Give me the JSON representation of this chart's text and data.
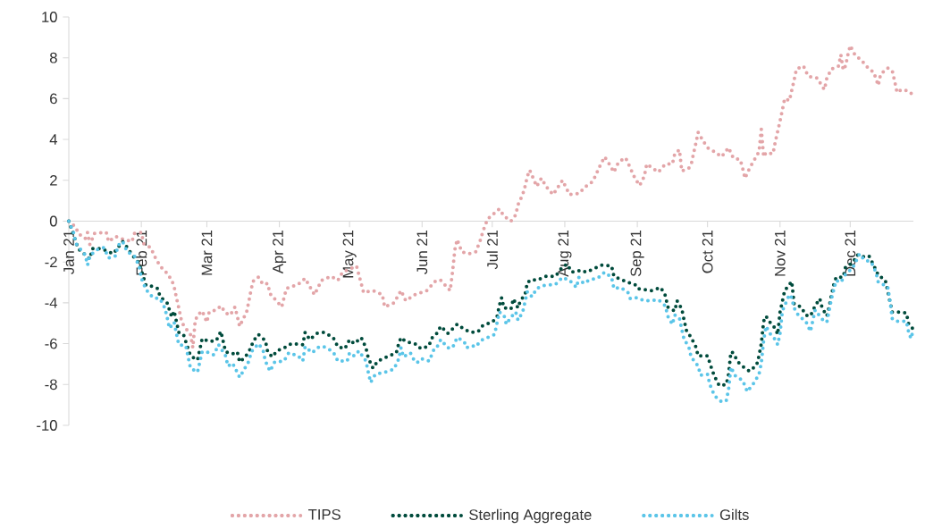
{
  "chart_data": {
    "type": "line",
    "line_style": "dotted",
    "legend": "bottom",
    "xlim": [
      "2021-01-01",
      "2021-12-28"
    ],
    "xticks": [
      {
        "value": "2021-01-01",
        "label": "Jan 21"
      },
      {
        "value": "2021-02-01",
        "label": "Feb 21"
      },
      {
        "value": "2021-03-01",
        "label": "Mar 21"
      },
      {
        "value": "2021-04-01",
        "label": "Apr 21"
      },
      {
        "value": "2021-05-01",
        "label": "May 21"
      },
      {
        "value": "2021-06-01",
        "label": "Jun 21"
      },
      {
        "value": "2021-07-01",
        "label": "Jul 21"
      },
      {
        "value": "2021-08-01",
        "label": "Aug 21"
      },
      {
        "value": "2021-09-01",
        "label": "Sep 21"
      },
      {
        "value": "2021-10-01",
        "label": "Oct 21"
      },
      {
        "value": "2021-11-01",
        "label": "Nov 21"
      },
      {
        "value": "2021-12-01",
        "label": "Dec 21"
      }
    ],
    "ylim": [
      -10,
      10
    ],
    "yticks": [
      -10,
      -8,
      -6,
      -4,
      -2,
      0,
      2,
      4,
      6,
      8,
      10
    ],
    "series": [
      {
        "name": "TIPS",
        "color": "#e3a5a8",
        "x": [
          "2021-01-01",
          "2021-01-04",
          "2021-01-05",
          "2021-01-08",
          "2021-01-09",
          "2021-01-10",
          "2021-01-12",
          "2021-01-17",
          "2021-01-18",
          "2021-01-21",
          "2021-01-23",
          "2021-01-28",
          "2021-01-29",
          "2021-02-01",
          "2021-02-02",
          "2021-02-05",
          "2021-02-07",
          "2021-02-09",
          "2021-02-12",
          "2021-02-14",
          "2021-02-15",
          "2021-02-16",
          "2021-02-17",
          "2021-02-18",
          "2021-02-19",
          "2021-02-22",
          "2021-02-23",
          "2021-02-24",
          "2021-02-25",
          "2021-02-27",
          "2021-03-01",
          "2021-03-02",
          "2021-03-05",
          "2021-03-07",
          "2021-03-09",
          "2021-03-11",
          "2021-03-13",
          "2021-03-14",
          "2021-03-15",
          "2021-03-18",
          "2021-03-19",
          "2021-03-20",
          "2021-03-21",
          "2021-03-23",
          "2021-03-25",
          "2021-03-27",
          "2021-03-28",
          "2021-04-02",
          "2021-04-04",
          "2021-04-09",
          "2021-04-12",
          "2021-04-16",
          "2021-04-19",
          "2021-04-23",
          "2021-04-26",
          "2021-04-28",
          "2021-05-04",
          "2021-05-07",
          "2021-05-11",
          "2021-05-15",
          "2021-05-16",
          "2021-05-20",
          "2021-05-23",
          "2021-05-25",
          "2021-05-29",
          "2021-06-03",
          "2021-06-07",
          "2021-06-09",
          "2021-06-13",
          "2021-06-14",
          "2021-06-15",
          "2021-06-16",
          "2021-06-18",
          "2021-06-21",
          "2021-06-24",
          "2021-06-26",
          "2021-06-27",
          "2021-06-29",
          "2021-07-04",
          "2021-07-06",
          "2021-07-09",
          "2021-07-11",
          "2021-07-12",
          "2021-07-14",
          "2021-07-15",
          "2021-07-16",
          "2021-07-17",
          "2021-07-20",
          "2021-07-22",
          "2021-07-24",
          "2021-07-27",
          "2021-07-31",
          "2021-08-03",
          "2021-08-07",
          "2021-08-10",
          "2021-08-13",
          "2021-08-16",
          "2021-08-18",
          "2021-08-20",
          "2021-08-22",
          "2021-08-24",
          "2021-08-27",
          "2021-08-29",
          "2021-08-31",
          "2021-09-02",
          "2021-09-04",
          "2021-09-05",
          "2021-09-10",
          "2021-09-13",
          "2021-09-16",
          "2021-09-17",
          "2021-09-19",
          "2021-09-20",
          "2021-09-23",
          "2021-09-24",
          "2021-09-25",
          "2021-09-26",
          "2021-09-27",
          "2021-09-29",
          "2021-10-01",
          "2021-10-04",
          "2021-10-07",
          "2021-10-10",
          "2021-10-12",
          "2021-10-15",
          "2021-10-16",
          "2021-10-17",
          "2021-10-19",
          "2021-10-21",
          "2021-10-23",
          "2021-10-24",
          "2021-10-25",
          "2021-10-26",
          "2021-10-29",
          "2021-10-30",
          "2021-10-31",
          "2021-11-01",
          "2021-11-02",
          "2021-11-03",
          "2021-11-05",
          "2021-11-06",
          "2021-11-07",
          "2021-11-08",
          "2021-11-11",
          "2021-11-13",
          "2021-11-17",
          "2021-11-19",
          "2021-11-20",
          "2021-11-21",
          "2021-11-23",
          "2021-11-26",
          "2021-11-27",
          "2021-11-28",
          "2021-11-29",
          "2021-11-30",
          "2021-12-01",
          "2021-12-03",
          "2021-12-06",
          "2021-12-09",
          "2021-12-11",
          "2021-12-13",
          "2021-12-14",
          "2021-12-17",
          "2021-12-19",
          "2021-12-20",
          "2021-12-21",
          "2021-12-23",
          "2021-12-25",
          "2021-12-27",
          "2021-12-28"
        ],
        "values": [
          0,
          -0.3,
          -0.6,
          -0.85,
          -0.55,
          -1.15,
          -0.6,
          -0.55,
          -1.0,
          -0.75,
          -0.85,
          -1.0,
          -0.6,
          -0.55,
          -1.1,
          -1.3,
          -1.8,
          -2.2,
          -2.55,
          -2.9,
          -3.2,
          -3.75,
          -4.25,
          -4.8,
          -5.1,
          -5.55,
          -6.2,
          -4.9,
          -4.6,
          -4.4,
          -4.95,
          -4.45,
          -4.35,
          -4.15,
          -4.5,
          -4.6,
          -4.2,
          -4.65,
          -5.15,
          -4.45,
          -3.9,
          -3.3,
          -2.9,
          -2.75,
          -3.1,
          -3.05,
          -3.55,
          -4.2,
          -3.3,
          -3.1,
          -2.8,
          -3.6,
          -2.9,
          -2.7,
          -2.9,
          -2.5,
          -2.2,
          -3.5,
          -3.4,
          -3.6,
          -4.2,
          -4.0,
          -3.4,
          -3.9,
          -3.6,
          -3.4,
          -2.9,
          -2.9,
          -3.4,
          -2.5,
          -1.4,
          -0.9,
          -1.5,
          -1.6,
          -1.5,
          -0.9,
          -0.5,
          0.1,
          0.6,
          0.25,
          0.0,
          0.3,
          0.8,
          1.3,
          1.7,
          2.2,
          2.5,
          1.7,
          2.1,
          1.7,
          1.3,
          2.0,
          1.3,
          1.35,
          1.7,
          1.95,
          2.7,
          3.15,
          2.8,
          2.4,
          2.9,
          3.1,
          2.6,
          2.1,
          1.75,
          2.2,
          2.8,
          2.4,
          2.8,
          2.8,
          3.3,
          3.5,
          2.45,
          2.6,
          2.75,
          3.3,
          3.8,
          4.35,
          3.95,
          3.6,
          3.4,
          3.15,
          3.6,
          3.1,
          3.0,
          2.6,
          2.1,
          2.6,
          3.0,
          3.4,
          4.5,
          3.15,
          3.35,
          3.3,
          3.9,
          4.4,
          4.9,
          5.45,
          6.0,
          5.9,
          6.4,
          6.9,
          7.45,
          7.6,
          7.1,
          7.0,
          6.6,
          6.45,
          7.0,
          7.45,
          7.6,
          8.15,
          7.4,
          7.6,
          8.15,
          8.6,
          8.15,
          7.85,
          7.45,
          7.3,
          6.65,
          7.2,
          7.5,
          7.35,
          6.85,
          6.3,
          6.45,
          6.4,
          6.25,
          6.4
        ]
      },
      {
        "name": "Sterling Aggregate",
        "color": "#004b3c",
        "x": [
          "2021-01-01",
          "2021-01-05",
          "2021-01-10",
          "2021-01-11",
          "2021-01-15",
          "2021-01-18",
          "2021-01-20",
          "2021-01-24",
          "2021-01-26",
          "2021-01-28",
          "2021-01-31",
          "2021-02-03",
          "2021-02-06",
          "2021-02-08",
          "2021-02-09",
          "2021-02-12",
          "2021-02-14",
          "2021-02-15",
          "2021-02-17",
          "2021-02-19",
          "2021-02-22",
          "2021-02-25",
          "2021-02-27",
          "2021-03-02",
          "2021-03-05",
          "2021-03-07",
          "2021-03-09",
          "2021-03-12",
          "2021-03-14",
          "2021-03-15",
          "2021-03-17",
          "2021-03-19",
          "2021-03-21",
          "2021-03-23",
          "2021-03-26",
          "2021-03-27",
          "2021-03-29",
          "2021-03-31",
          "2021-04-04",
          "2021-04-06",
          "2021-04-11",
          "2021-04-12",
          "2021-04-14",
          "2021-04-17",
          "2021-04-20",
          "2021-04-24",
          "2021-04-26",
          "2021-04-29",
          "2021-05-01",
          "2021-05-03",
          "2021-05-06",
          "2021-05-08",
          "2021-05-09",
          "2021-05-11",
          "2021-05-13",
          "2021-05-17",
          "2021-05-21",
          "2021-05-22",
          "2021-05-23",
          "2021-05-25",
          "2021-05-29",
          "2021-05-30",
          "2021-06-01",
          "2021-06-04",
          "2021-06-05",
          "2021-06-07",
          "2021-06-09",
          "2021-06-12",
          "2021-06-16",
          "2021-06-19",
          "2021-06-22",
          "2021-06-25",
          "2021-06-27",
          "2021-07-01",
          "2021-07-03",
          "2021-07-04",
          "2021-07-05",
          "2021-07-06",
          "2021-07-09",
          "2021-07-10",
          "2021-07-12",
          "2021-07-13",
          "2021-07-15",
          "2021-07-16",
          "2021-07-18",
          "2021-07-20",
          "2021-07-24",
          "2021-07-28",
          "2021-07-31",
          "2021-08-02",
          "2021-08-04",
          "2021-08-08",
          "2021-08-10",
          "2021-08-14",
          "2021-08-17",
          "2021-08-21",
          "2021-08-22",
          "2021-08-24",
          "2021-08-28",
          "2021-08-31",
          "2021-09-01",
          "2021-09-04",
          "2021-09-07",
          "2021-09-11",
          "2021-09-13",
          "2021-09-14",
          "2021-09-17",
          "2021-09-18",
          "2021-09-20",
          "2021-09-21",
          "2021-09-22",
          "2021-09-24",
          "2021-09-26",
          "2021-09-27",
          "2021-10-01",
          "2021-10-02",
          "2021-10-03",
          "2021-10-04",
          "2021-10-06",
          "2021-10-09",
          "2021-10-10",
          "2021-10-11",
          "2021-10-12",
          "2021-10-14",
          "2021-10-17",
          "2021-10-19",
          "2021-10-22",
          "2021-10-23",
          "2021-10-24",
          "2021-10-25",
          "2021-10-26",
          "2021-10-28",
          "2021-10-30",
          "2021-10-31",
          "2021-11-01",
          "2021-11-03",
          "2021-11-06",
          "2021-11-07",
          "2021-11-10",
          "2021-11-12",
          "2021-11-14",
          "2021-11-16",
          "2021-11-18",
          "2021-11-19",
          "2021-11-21",
          "2021-11-22",
          "2021-11-23",
          "2021-11-24",
          "2021-11-25",
          "2021-11-28",
          "2021-11-29",
          "2021-12-02",
          "2021-12-04",
          "2021-12-06",
          "2021-12-09",
          "2021-12-11",
          "2021-12-13",
          "2021-12-16",
          "2021-12-17",
          "2021-12-18",
          "2021-12-19",
          "2021-12-21",
          "2021-12-25",
          "2021-12-26",
          "2021-12-28"
        ],
        "values": [
          0,
          -1.35,
          -1.85,
          -1.35,
          -1.35,
          -1.5,
          -1.6,
          -1.0,
          -1.3,
          -1.65,
          -2.05,
          -3.15,
          -3.2,
          -3.3,
          -3.7,
          -4.0,
          -4.7,
          -4.4,
          -5.45,
          -5.55,
          -6.6,
          -6.8,
          -5.75,
          -5.9,
          -5.85,
          -5.4,
          -6.4,
          -6.5,
          -6.4,
          -6.9,
          -6.7,
          -6.4,
          -5.85,
          -5.55,
          -5.85,
          -6.4,
          -6.65,
          -6.35,
          -6.15,
          -6.0,
          -6.05,
          -5.45,
          -5.8,
          -5.5,
          -5.45,
          -5.7,
          -6.15,
          -6.25,
          -5.8,
          -6.0,
          -5.7,
          -6.2,
          -6.7,
          -7.2,
          -6.85,
          -6.65,
          -6.45,
          -6.0,
          -5.7,
          -5.9,
          -6.0,
          -6.15,
          -6.25,
          -6.1,
          -5.75,
          -5.55,
          -5.15,
          -5.5,
          -5.05,
          -5.3,
          -5.45,
          -5.4,
          -5.1,
          -4.95,
          -4.7,
          -4.15,
          -3.75,
          -4.25,
          -4.3,
          -3.8,
          -4.25,
          -3.9,
          -3.6,
          -3.0,
          -2.85,
          -2.9,
          -2.7,
          -2.7,
          -2.25,
          -2.1,
          -2.5,
          -2.4,
          -2.5,
          -2.3,
          -2.15,
          -2.2,
          -2.7,
          -2.8,
          -3.0,
          -3.1,
          -3.3,
          -3.35,
          -3.4,
          -3.25,
          -3.65,
          -4.2,
          -4.4,
          -3.9,
          -4.3,
          -4.85,
          -5.35,
          -5.7,
          -6.15,
          -6.6,
          -6.6,
          -6.95,
          -7.3,
          -7.6,
          -8.05,
          -8.0,
          -7.5,
          -6.4,
          -6.45,
          -6.9,
          -7.2,
          -7.35,
          -7.05,
          -6.6,
          -6.0,
          -4.9,
          -4.65,
          -5.0,
          -5.25,
          -5.55,
          -4.45,
          -3.4,
          -2.95,
          -4.05,
          -4.2,
          -4.6,
          -4.65,
          -4.15,
          -3.8,
          -4.25,
          -4.65,
          -4.2,
          -3.6,
          -3.1,
          -2.75,
          -2.75,
          -2.25,
          -2.05,
          -1.65,
          -1.75,
          -1.7,
          -2.15,
          -2.65,
          -2.9,
          -3.4,
          -3.95,
          -4.45,
          -4.45,
          -4.5,
          -5.05,
          -5.3
        ]
      },
      {
        "name": "Gilts",
        "color": "#5bc5e8",
        "x": [
          "2021-01-01",
          "2021-01-03",
          "2021-01-04",
          "2021-01-08",
          "2021-01-09",
          "2021-01-10",
          "2021-01-13",
          "2021-01-16",
          "2021-01-18",
          "2021-01-21",
          "2021-01-22",
          "2021-01-24",
          "2021-01-26",
          "2021-01-29",
          "2021-01-31",
          "2021-02-01",
          "2021-02-03",
          "2021-02-06",
          "2021-02-09",
          "2021-02-11",
          "2021-02-12",
          "2021-02-13",
          "2021-02-15",
          "2021-02-16",
          "2021-02-17",
          "2021-02-20",
          "2021-02-21",
          "2021-02-22",
          "2021-02-25",
          "2021-02-26",
          "2021-02-27",
          "2021-03-01",
          "2021-03-04",
          "2021-03-06",
          "2021-03-09",
          "2021-03-10",
          "2021-03-12",
          "2021-03-15",
          "2021-03-17",
          "2021-03-19",
          "2021-03-20",
          "2021-03-23",
          "2021-03-25",
          "2021-03-26",
          "2021-03-28",
          "2021-03-30",
          "2021-04-03",
          "2021-04-05",
          "2021-04-09",
          "2021-04-11",
          "2021-04-12",
          "2021-04-15",
          "2021-04-18",
          "2021-04-20",
          "2021-04-24",
          "2021-04-26",
          "2021-04-30",
          "2021-05-01",
          "2021-05-03",
          "2021-05-05",
          "2021-05-08",
          "2021-05-09",
          "2021-05-10",
          "2021-05-12",
          "2021-05-16",
          "2021-05-20",
          "2021-05-22",
          "2021-05-23",
          "2021-05-24",
          "2021-05-27",
          "2021-05-29",
          "2021-05-31",
          "2021-06-01",
          "2021-06-04",
          "2021-06-06",
          "2021-06-07",
          "2021-06-09",
          "2021-06-12",
          "2021-06-14",
          "2021-06-16",
          "2021-06-19",
          "2021-06-20",
          "2021-06-22",
          "2021-06-24",
          "2021-06-26",
          "2021-06-30",
          "2021-07-02",
          "2021-07-03",
          "2021-07-04",
          "2021-07-06",
          "2021-07-07",
          "2021-07-09",
          "2021-07-11",
          "2021-07-12",
          "2021-07-14",
          "2021-07-15",
          "2021-07-16",
          "2021-07-18",
          "2021-07-20",
          "2021-07-23",
          "2021-07-28",
          "2021-07-31",
          "2021-08-03",
          "2021-08-06",
          "2021-08-07",
          "2021-08-09",
          "2021-08-12",
          "2021-08-15",
          "2021-08-18",
          "2021-08-21",
          "2021-08-22",
          "2021-08-25",
          "2021-08-28",
          "2021-08-29",
          "2021-09-01",
          "2021-09-04",
          "2021-09-06",
          "2021-09-10",
          "2021-09-13",
          "2021-09-14",
          "2021-09-16",
          "2021-09-17",
          "2021-09-19",
          "2021-09-20",
          "2021-09-21",
          "2021-09-23",
          "2021-09-24",
          "2021-09-27",
          "2021-09-28",
          "2021-10-01",
          "2021-10-02",
          "2021-10-04",
          "2021-10-07",
          "2021-10-09",
          "2021-10-10",
          "2021-10-11",
          "2021-10-13",
          "2021-10-16",
          "2021-10-18",
          "2021-10-21",
          "2021-10-23",
          "2021-10-24",
          "2021-10-25",
          "2021-10-26",
          "2021-10-28",
          "2021-10-30",
          "2021-10-31",
          "2021-11-01",
          "2021-11-02",
          "2021-11-05",
          "2021-11-06",
          "2021-11-07",
          "2021-11-09",
          "2021-11-12",
          "2021-11-14",
          "2021-11-16",
          "2021-11-19",
          "2021-11-21",
          "2021-11-23",
          "2021-11-25",
          "2021-11-27",
          "2021-11-29",
          "2021-12-02",
          "2021-12-05",
          "2021-12-07",
          "2021-12-10",
          "2021-12-12",
          "2021-12-13",
          "2021-12-17",
          "2021-12-18",
          "2021-12-19",
          "2021-12-21",
          "2021-12-25",
          "2021-12-26",
          "2021-12-27",
          "2021-12-28"
        ],
        "values": [
          0,
          -0.55,
          -1.1,
          -1.65,
          -2.15,
          -1.7,
          -1.4,
          -1.3,
          -1.8,
          -1.7,
          -1.2,
          -1.0,
          -1.5,
          -1.7,
          -2.2,
          -2.8,
          -3.35,
          -3.75,
          -3.8,
          -4.25,
          -4.7,
          -5.25,
          -4.95,
          -5.5,
          -6.05,
          -6.1,
          -6.65,
          -7.2,
          -7.4,
          -6.9,
          -6.4,
          -6.4,
          -6.55,
          -6.05,
          -6.6,
          -7.1,
          -6.95,
          -7.65,
          -7.25,
          -6.85,
          -6.4,
          -6.0,
          -6.3,
          -6.85,
          -7.35,
          -6.9,
          -6.85,
          -6.45,
          -6.6,
          -6.85,
          -6.15,
          -6.45,
          -6.15,
          -6.15,
          -6.4,
          -6.85,
          -6.85,
          -6.45,
          -6.6,
          -6.35,
          -6.85,
          -7.4,
          -7.9,
          -7.5,
          -7.4,
          -7.25,
          -6.75,
          -6.2,
          -6.65,
          -6.45,
          -6.9,
          -6.9,
          -6.75,
          -6.85,
          -6.3,
          -6.25,
          -5.8,
          -6.2,
          -6.2,
          -5.7,
          -5.9,
          -6.2,
          -6.1,
          -6.15,
          -5.85,
          -5.65,
          -5.55,
          -5.0,
          -4.45,
          -4.6,
          -5.05,
          -4.7,
          -4.45,
          -4.85,
          -4.45,
          -3.95,
          -3.45,
          -3.7,
          -3.3,
          -3.15,
          -3.1,
          -2.75,
          -2.9,
          -3.25,
          -2.75,
          -3.05,
          -2.85,
          -2.8,
          -2.5,
          -2.75,
          -3.3,
          -3.25,
          -3.5,
          -3.8,
          -3.75,
          -3.9,
          -3.9,
          -3.85,
          -4.15,
          -4.65,
          -5.05,
          -4.6,
          -4.75,
          -5.3,
          -5.8,
          -6.15,
          -6.65,
          -7.1,
          -7.55,
          -7.5,
          -8.0,
          -8.55,
          -8.85,
          -8.8,
          -8.25,
          -7.15,
          -7.6,
          -7.8,
          -8.35,
          -7.9,
          -7.5,
          -6.95,
          -5.85,
          -5.15,
          -5.55,
          -5.8,
          -6.05,
          -5.5,
          -4.4,
          -3.6,
          -3.75,
          -4.25,
          -4.65,
          -4.9,
          -5.4,
          -4.35,
          -4.8,
          -4.95,
          -3.8,
          -2.9,
          -3.0,
          -2.6,
          -2.3,
          -1.6,
          -1.9,
          -2.0,
          -2.5,
          -3.0,
          -3.2,
          -3.9,
          -4.8,
          -4.9,
          -4.9,
          -5.45,
          -5.75,
          -5.3
        ]
      }
    ]
  }
}
